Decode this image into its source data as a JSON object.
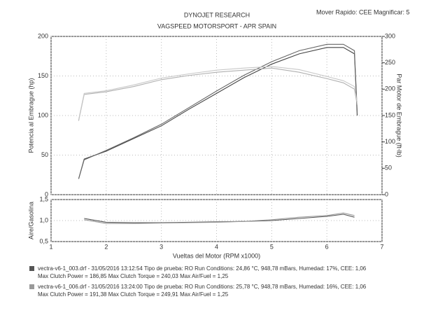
{
  "header": {
    "title": "DYNOJET RESEARCH",
    "subtitle": "VAGSPEED MOTORSPORT - APR SPAIN",
    "top_right": "Mover Rapido: CEE  Magnificar: 5"
  },
  "legend": [
    {
      "color": "#555555",
      "info": "vectra-v6-1_003.drf - 31/05/2016 13:12:54  Tipo de prueba: RO  Run Conditions: 24,86 °C, 948,78 mBars,  Humedad: 17%, CEE: 1,06",
      "stats": "Max Clutch Power = 186,85  Max Clutch Torque = 240,03  Max Air/Fuel = 1,25"
    },
    {
      "color": "#9a9a9a",
      "info": "vectra-v6-1_006.drf - 31/05/2016 13:24:00  Tipo de prueba: RO  Run Conditions: 25,78 °C, 948,78 mBars,  Humedad: 16%, CEE: 1,06",
      "stats": "Max Clutch Power = 191,38  Max Clutch Torque = 249,91  Max Air/Fuel = 1,25"
    }
  ],
  "chart_data": [
    {
      "type": "line",
      "y_label": "Potencia al Embrague (hp)",
      "y2_label": "Par Motor de Embrague (ft-lb)",
      "xlim": [
        1,
        7
      ],
      "xticks": [
        1,
        2,
        3,
        4,
        5,
        6,
        7
      ],
      "ylim": [
        0,
        200
      ],
      "yticks": [
        0,
        50,
        100,
        150,
        200
      ],
      "y2lim": [
        0,
        300
      ],
      "y2ticks": [
        0,
        50,
        100,
        150,
        200,
        250,
        300
      ],
      "grid": true,
      "x": [
        1.5,
        1.6,
        2,
        2.5,
        3,
        3.5,
        4,
        4.5,
        5,
        5.5,
        6,
        6.3,
        6.5,
        6.55
      ],
      "series": [
        {
          "color": "#444444",
          "values": [
            20,
            45,
            55,
            71,
            87,
            108,
            128,
            148,
            165,
            178,
            186,
            186,
            178,
            100
          ]
        },
        {
          "color": "#666666",
          "values": [
            20,
            44,
            56,
            72,
            89,
            110,
            131,
            151,
            168,
            182,
            190,
            190,
            182,
            105
          ]
        },
        {
          "color": "#b0b0b0",
          "axis": "y2",
          "values": [
            140,
            190,
            195,
            205,
            218,
            226,
            232,
            236,
            240,
            232,
            220,
            212,
            200,
            170
          ]
        },
        {
          "color": "#c8c8c8",
          "axis": "y2",
          "values": [
            142,
            192,
            197,
            208,
            221,
            229,
            236,
            240,
            243,
            237,
            224,
            216,
            205,
            175
          ]
        }
      ]
    },
    {
      "type": "line",
      "y_label": "Aire/Gasolina",
      "x_label": "Vueltas del Motor (RPM x1000)",
      "xlim": [
        1,
        7
      ],
      "xticks": [
        1,
        2,
        3,
        4,
        5,
        6,
        7
      ],
      "ylim": [
        0.5,
        1.5
      ],
      "yticks": [
        {
          "value": 0.5,
          "label": "0,5"
        },
        {
          "value": 1.0,
          "label": "1,0"
        },
        {
          "value": 1.5,
          "label": "1,5"
        }
      ],
      "grid": true,
      "x": [
        1.5,
        1.6,
        2,
        2.5,
        3,
        3.5,
        4,
        4.5,
        5,
        5.5,
        6,
        6.3,
        6.5,
        6.55
      ],
      "series": [
        {
          "color": "#555555",
          "values": [
            null,
            1.05,
            0.96,
            0.95,
            0.95,
            0.96,
            0.97,
            0.98,
            1.0,
            1.05,
            1.1,
            1.15,
            1.08,
            null
          ]
        },
        {
          "color": "#9a9a9a",
          "values": [
            null,
            1.02,
            0.93,
            0.93,
            0.94,
            0.95,
            0.96,
            0.98,
            1.02,
            1.08,
            1.12,
            1.18,
            1.12,
            null
          ]
        }
      ]
    }
  ]
}
